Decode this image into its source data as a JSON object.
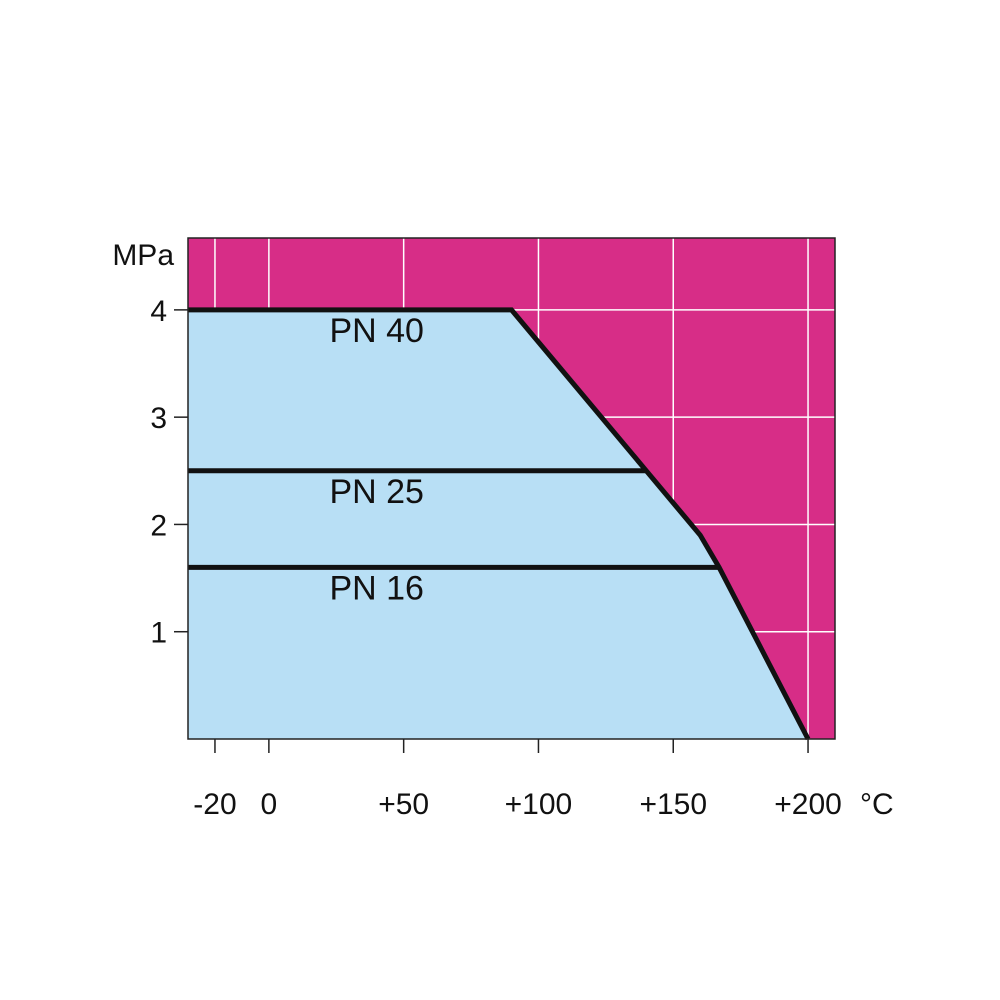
{
  "chart_data": {
    "type": "area",
    "x_unit": "°C",
    "y_unit": "MPa",
    "x_ticks": [
      {
        "value": -20,
        "label": "-20"
      },
      {
        "value": 0,
        "label": "0"
      },
      {
        "value": 50,
        "label": "+50"
      },
      {
        "value": 100,
        "label": "+100"
      },
      {
        "value": 150,
        "label": "+150"
      },
      {
        "value": 200,
        "label": "+200"
      }
    ],
    "y_ticks": [
      {
        "value": 1,
        "label": "1"
      },
      {
        "value": 2,
        "label": "2"
      },
      {
        "value": 3,
        "label": "3"
      },
      {
        "value": 4,
        "label": "4"
      }
    ],
    "xlim": [
      -30,
      210
    ],
    "ylim": [
      0,
      4.67
    ],
    "grid": true,
    "envelope": {
      "x": [
        -30,
        90,
        140,
        160,
        167,
        200
      ],
      "y": [
        4.0,
        4.0,
        2.5,
        1.9,
        1.6,
        0.0
      ]
    },
    "series": [
      {
        "name": "PN 40",
        "label_at": {
          "x": 40,
          "y": 3.7
        },
        "x": [
          -30,
          90,
          140,
          160,
          167,
          200
        ],
        "y": [
          4.0,
          4.0,
          2.5,
          1.9,
          1.6,
          0.0
        ]
      },
      {
        "name": "PN 25",
        "label_at": {
          "x": 40,
          "y": 2.2
        },
        "x": [
          -30,
          140
        ],
        "y": [
          2.5,
          2.5
        ]
      },
      {
        "name": "PN 16",
        "label_at": {
          "x": 40,
          "y": 1.3
        },
        "x": [
          -30,
          167
        ],
        "y": [
          1.6,
          1.6
        ]
      }
    ],
    "colors": {
      "allowed_region": "#b8dff5",
      "outside_region": "#d72d87",
      "grid": "#ffffff",
      "line": "#111111"
    }
  }
}
